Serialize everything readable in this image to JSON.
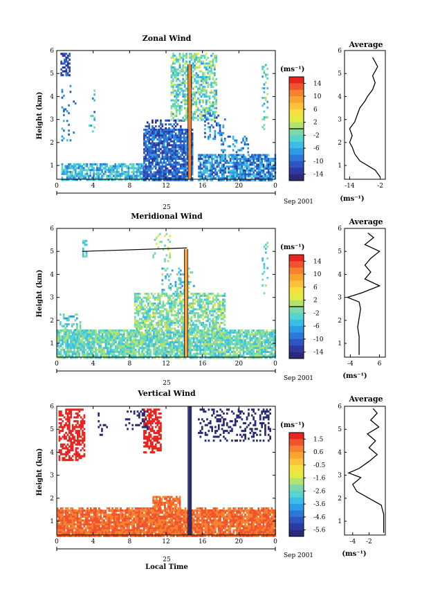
{
  "chart_data": [
    {
      "type": "heatmap",
      "title": "Zonal Wind",
      "ylabel": "Height (km)",
      "ylim": [
        0.4,
        6
      ],
      "yticks": [
        1,
        2,
        3,
        4,
        5,
        6
      ],
      "xlim": [
        0,
        24
      ],
      "xticks": [
        "0",
        "4",
        "8",
        "12",
        "16",
        "20",
        "0"
      ],
      "date_label": "25",
      "month_label": "Sep 2001",
      "colorbar": {
        "unit": "(ms⁻¹)",
        "ticks": [
          "14",
          "10",
          "6",
          "2",
          "-2",
          "-6",
          "-10",
          "-14"
        ],
        "range": [
          -16,
          16
        ],
        "marker": 0,
        "colors": [
          "#E8241E",
          "#F0532D",
          "#F6822F",
          "#F9A330",
          "#FBC33C",
          "#F7DF3D",
          "#E2EB43",
          "#B4E36B",
          "#7FD9A6",
          "#55D4D0",
          "#3ABEE8",
          "#2E9BE7",
          "#2C78D5",
          "#2E56C1",
          "#2E3AA1",
          "#2A2A78"
        ]
      },
      "clusters": [
        {
          "t": [
            0.5,
            9.5
          ],
          "h": [
            0.4,
            1.1
          ],
          "v": -5,
          "s": 4,
          "dens": 0.75
        },
        {
          "t": [
            9.5,
            14.8
          ],
          "h": [
            0.4,
            2.6
          ],
          "v": -10,
          "s": 4,
          "dens": 0.85
        },
        {
          "t": [
            15.5,
            24
          ],
          "h": [
            0.4,
            1.5
          ],
          "v": -8,
          "s": 5,
          "dens": 0.8
        },
        {
          "t": [
            9.5,
            14
          ],
          "h": [
            2.6,
            3.0
          ],
          "v": -12,
          "s": 3,
          "dens": 0.35
        },
        {
          "t": [
            12.5,
            17.5
          ],
          "h": [
            3.0,
            5.9
          ],
          "v": -2,
          "s": 5,
          "dens": 0.55
        },
        {
          "t": [
            16,
            18.5
          ],
          "h": [
            2.2,
            3.3
          ],
          "v": -9,
          "s": 4,
          "dens": 0.25
        },
        {
          "t": [
            0.4,
            1.4
          ],
          "h": [
            4.9,
            5.9
          ],
          "v": -12,
          "s": 3,
          "dens": 0.5
        },
        {
          "t": [
            0.5,
            2.0
          ],
          "h": [
            2.0,
            4.5
          ],
          "v": -8,
          "s": 4,
          "dens": 0.1
        },
        {
          "t": [
            3.5,
            4.2
          ],
          "h": [
            2.5,
            4.3
          ],
          "v": -6,
          "s": 5,
          "dens": 0.2
        },
        {
          "t": [
            22.5,
            23.2
          ],
          "h": [
            2.6,
            5.5
          ],
          "v": -3,
          "s": 4,
          "dens": 0.18
        },
        {
          "t": [
            18,
            21
          ],
          "h": [
            1.6,
            2.3
          ],
          "v": -8,
          "s": 4,
          "dens": 0.25
        }
      ],
      "spike": {
        "t": 14.6,
        "h": [
          0.4,
          5.4
        ],
        "v": 12
      },
      "profile": {
        "title": "Average",
        "xlabel": "(ms⁻¹)",
        "xlim": [
          -16,
          0
        ],
        "xticks": [
          "-14",
          "-2"
        ],
        "xtick_values": [
          -14,
          -2
        ],
        "heights": [
          0.5,
          0.8,
          1.0,
          1.2,
          1.5,
          1.8,
          2.0,
          2.3,
          2.6,
          2.9,
          3.2,
          3.5,
          3.8,
          4.0,
          4.3,
          4.6,
          4.9,
          5.1,
          5.3,
          5.5,
          5.7
        ],
        "values": [
          -2,
          -4,
          -7,
          -10,
          -12,
          -13,
          -14,
          -13,
          -14,
          -12,
          -11,
          -10,
          -8,
          -7,
          -5,
          -4,
          -5,
          -4,
          -3,
          -4,
          -5
        ]
      }
    },
    {
      "type": "heatmap",
      "title": "Meridional Wind",
      "ylabel": "Height (km)",
      "ylim": [
        0.4,
        6
      ],
      "yticks": [
        1,
        2,
        3,
        4,
        5,
        6
      ],
      "xlim": [
        0,
        24
      ],
      "xticks": [
        "0",
        "4",
        "8",
        "12",
        "16",
        "20",
        "0"
      ],
      "date_label": "25",
      "month_label": "Sep 2001",
      "colorbar": {
        "unit": "(ms⁻¹)",
        "ticks": [
          "14",
          "10",
          "6",
          "2",
          "-2",
          "-6",
          "-10",
          "-14"
        ],
        "range": [
          -16,
          16
        ],
        "marker": 0,
        "colors": [
          "#E8241E",
          "#F0532D",
          "#F6822F",
          "#F9A330",
          "#FBC33C",
          "#F7DF3D",
          "#E2EB43",
          "#B4E36B",
          "#7FD9A6",
          "#55D4D0",
          "#3ABEE8",
          "#2E9BE7",
          "#2C78D5",
          "#2E56C1",
          "#2E3AA1",
          "#2A2A78"
        ]
      },
      "clusters": [
        {
          "t": [
            0,
            24
          ],
          "h": [
            0.4,
            1.6
          ],
          "v": -2,
          "s": 4,
          "dens": 0.85
        },
        {
          "t": [
            8.5,
            18.5
          ],
          "h": [
            1.6,
            3.2
          ],
          "v": -1,
          "s": 4,
          "dens": 0.65
        },
        {
          "t": [
            11.5,
            15
          ],
          "h": [
            3.2,
            4.3
          ],
          "v": -3,
          "s": 5,
          "dens": 0.3
        },
        {
          "t": [
            0.3,
            2.5
          ],
          "h": [
            1.6,
            2.3
          ],
          "v": -3,
          "s": 4,
          "dens": 0.25
        },
        {
          "t": [
            2.8,
            3.2
          ],
          "h": [
            4.8,
            5.5
          ],
          "v": -3,
          "s": 2,
          "dens": 0.7
        },
        {
          "t": [
            22.5,
            23.2
          ],
          "h": [
            3.2,
            5.5
          ],
          "v": -2,
          "s": 3,
          "dens": 0.2
        },
        {
          "t": [
            10.5,
            12.5
          ],
          "h": [
            4.5,
            5.8
          ],
          "v": 0,
          "s": 3,
          "dens": 0.15
        }
      ],
      "spike": {
        "t": 14.2,
        "h": [
          0.4,
          5.1
        ],
        "v": 9
      },
      "hline": {
        "t": [
          2.8,
          14.3
        ],
        "h": [
          5.0,
          5.15
        ]
      },
      "profile": {
        "title": "Average",
        "xlabel": "(ms⁻¹)",
        "xlim": [
          -6,
          8
        ],
        "xticks": [
          "-4",
          "6"
        ],
        "xtick_values": [
          -4,
          6
        ],
        "heights": [
          0.5,
          0.9,
          1.3,
          1.7,
          2.1,
          2.5,
          2.8,
          3.0,
          3.2,
          3.5,
          3.8,
          4.1,
          4.4,
          4.7,
          5.0,
          5.3,
          5.6,
          5.8
        ],
        "values": [
          -1,
          -1,
          -1,
          -1.5,
          -1,
          -0.5,
          -1,
          -5,
          0,
          6,
          1,
          3,
          1,
          3,
          6,
          1,
          4,
          2
        ]
      }
    },
    {
      "type": "heatmap",
      "title": "Vertical Wind",
      "ylabel": "Height (km)",
      "xlabel": "Local Time",
      "ylim": [
        0.4,
        6
      ],
      "yticks": [
        1,
        2,
        3,
        4,
        5,
        6
      ],
      "xlim": [
        0,
        24
      ],
      "xticks": [
        "0",
        "4",
        "8",
        "12",
        "16",
        "20",
        "0"
      ],
      "date_label": "25",
      "month_label": "Sep 2001",
      "colorbar": {
        "unit": "(ms⁻¹)",
        "ticks": [
          "1.5",
          "0.6",
          "-0.5",
          "-1.6",
          "-2.6",
          "-3.6",
          "-4.6",
          "-5.6"
        ],
        "range": [
          -6.1,
          2.0
        ],
        "marker": null,
        "colors": [
          "#E8241E",
          "#F0532D",
          "#F6822F",
          "#F9A330",
          "#FBC33C",
          "#F7DF3D",
          "#E2EB43",
          "#B4E36B",
          "#7FD9A6",
          "#55D4D0",
          "#3ABEE8",
          "#2E9BE7",
          "#2C78D5",
          "#2E56C1",
          "#2E3AA1",
          "#2A2A78"
        ]
      },
      "clusters": [
        {
          "t": [
            0,
            24
          ],
          "h": [
            0.4,
            1.5
          ],
          "v": 1.0,
          "s": 0.2,
          "dens": 0.92
        },
        {
          "t": [
            0,
            24
          ],
          "h": [
            1.5,
            1.6
          ],
          "v": 1.0,
          "s": 0.2,
          "dens": 0.5
        },
        {
          "t": [
            10.5,
            13.5
          ],
          "h": [
            1.5,
            2.1
          ],
          "v": 0.9,
          "s": 0.4,
          "dens": 0.7
        },
        {
          "t": [
            0.2,
            3.0
          ],
          "h": [
            3.7,
            5.9
          ],
          "v": 1.9,
          "s": 0.1,
          "dens": 0.55
        },
        {
          "t": [
            9.5,
            11.5
          ],
          "h": [
            4.0,
            5.9
          ],
          "v": 1.9,
          "s": 0.1,
          "dens": 0.6
        },
        {
          "t": [
            7.5,
            10.0
          ],
          "h": [
            5.0,
            5.9
          ],
          "v": -5.8,
          "s": 0.2,
          "dens": 0.3
        },
        {
          "t": [
            15.5,
            23.5
          ],
          "h": [
            4.5,
            5.9
          ],
          "v": -5.8,
          "s": 0.2,
          "dens": 0.28
        },
        {
          "t": [
            4.5,
            5.5
          ],
          "h": [
            4.8,
            5.9
          ],
          "v": -5.8,
          "s": 0.2,
          "dens": 0.15
        }
      ],
      "spike": {
        "t": 14.6,
        "h": [
          0.4,
          6.0
        ],
        "v": -5.6
      },
      "profile": {
        "title": "Average",
        "xlabel": "(ms⁻¹)",
        "xlim": [
          -5,
          0
        ],
        "xticks": [
          "-4",
          "-2"
        ],
        "xtick_values": [
          -4,
          -2
        ],
        "heights": [
          0.5,
          0.9,
          1.3,
          1.7,
          2.0,
          2.3,
          2.6,
          2.9,
          3.1,
          3.3,
          3.6,
          3.9,
          4.2,
          4.5,
          4.8,
          5.1,
          5.4,
          5.7,
          5.9
        ],
        "values": [
          -0.2,
          -0.2,
          -0.2,
          -0.5,
          -2,
          -3.5,
          -4,
          -3,
          -4.5,
          -3.2,
          -2,
          -1,
          -2,
          -1.2,
          -2.2,
          -0.8,
          -1.8,
          -1,
          -1.5
        ]
      }
    }
  ]
}
